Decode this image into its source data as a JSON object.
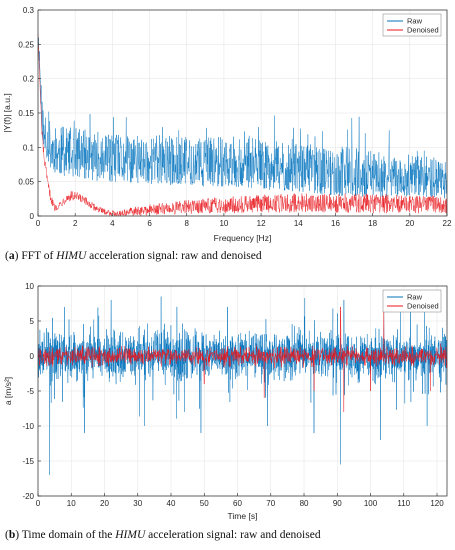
{
  "captions": {
    "a": {
      "letter": "a",
      "pre": "FFT of ",
      "em": "HIMU",
      "post": " acceleration signal: raw and denoised"
    },
    "b": {
      "letter": "b",
      "pre": "Time domain of the ",
      "em": "HIMU",
      "post": " acceleration signal: raw and denoised"
    }
  },
  "colors": {
    "raw": "#0072bd",
    "denoised": "#e8161c",
    "grid": "#e6e6e6",
    "axis": "#262626"
  },
  "chart_data": [
    {
      "id": "fft",
      "type": "line",
      "title": "",
      "xlabel": "Frequency [Hz]",
      "ylabel": "|Y(f)| [a.u.]",
      "xlim": [
        0,
        22
      ],
      "ylim": [
        0,
        0.3
      ],
      "xticks": [
        0,
        2,
        4,
        6,
        8,
        10,
        12,
        14,
        16,
        18,
        20,
        22
      ],
      "yticks": [
        0,
        0.05,
        0.1,
        0.15,
        0.2,
        0.25,
        0.3
      ],
      "ytick_labels": [
        "0",
        "0.05",
        "0.1",
        "0.15",
        "0.2",
        "0.25",
        "0.3"
      ],
      "grid": true,
      "legend_position": "top-right",
      "series": [
        {
          "name": "Raw",
          "color": "#0072bd",
          "x": [
            0,
            0.1,
            0.2,
            0.3,
            0.5,
            0.7,
            1,
            1.5,
            2,
            3,
            4,
            5,
            6,
            7,
            8,
            9,
            10,
            11,
            12,
            13,
            14,
            15,
            16,
            17,
            18,
            19,
            20,
            21,
            22
          ],
          "y": [
            0.27,
            0.22,
            0.15,
            0.12,
            0.11,
            0.1,
            0.095,
            0.09,
            0.09,
            0.085,
            0.08,
            0.08,
            0.08,
            0.078,
            0.078,
            0.076,
            0.076,
            0.075,
            0.072,
            0.07,
            0.068,
            0.065,
            0.063,
            0.06,
            0.058,
            0.056,
            0.055,
            0.054,
            0.053
          ],
          "spread": [
            0.02,
            0.03,
            0.04,
            0.05,
            0.05,
            0.06,
            0.06,
            0.06,
            0.06,
            0.06,
            0.06,
            0.06,
            0.06,
            0.06,
            0.06,
            0.06,
            0.06,
            0.06,
            0.06,
            0.06,
            0.06,
            0.06,
            0.06,
            0.06,
            0.06,
            0.05,
            0.05,
            0.05,
            0.05
          ]
        },
        {
          "name": "Denoised",
          "color": "#e8161c",
          "x": [
            0,
            0.1,
            0.2,
            0.3,
            0.5,
            0.7,
            0.9,
            1.2,
            1.5,
            1.8,
            2.1,
            2.5,
            3,
            3.5,
            4,
            4.5,
            5,
            6,
            7,
            8,
            9,
            10,
            11,
            12,
            13,
            14,
            15,
            16,
            17,
            18,
            19,
            20,
            21,
            22
          ],
          "y": [
            0.27,
            0.19,
            0.13,
            0.09,
            0.05,
            0.025,
            0.012,
            0.017,
            0.026,
            0.029,
            0.027,
            0.022,
            0.013,
            0.007,
            0.004,
            0.004,
            0.006,
            0.009,
            0.011,
            0.013,
            0.015,
            0.016,
            0.017,
            0.018,
            0.019,
            0.019,
            0.019,
            0.019,
            0.019,
            0.018,
            0.018,
            0.017,
            0.017,
            0.016
          ],
          "spread": [
            0.01,
            0.01,
            0.01,
            0.01,
            0.008,
            0.006,
            0.005,
            0.006,
            0.007,
            0.008,
            0.008,
            0.007,
            0.005,
            0.004,
            0.004,
            0.005,
            0.006,
            0.008,
            0.009,
            0.01,
            0.011,
            0.012,
            0.013,
            0.013,
            0.014,
            0.014,
            0.014,
            0.014,
            0.014,
            0.014,
            0.014,
            0.013,
            0.013,
            0.013
          ]
        }
      ]
    },
    {
      "id": "time",
      "type": "line",
      "title": "",
      "xlabel": "Time [s]",
      "ylabel": "a [m/s²]",
      "xlim": [
        0,
        123
      ],
      "ylim": [
        -20,
        10
      ],
      "xticks": [
        0,
        10,
        20,
        30,
        40,
        50,
        60,
        70,
        80,
        90,
        100,
        110,
        120
      ],
      "yticks": [
        -20,
        -15,
        -10,
        -5,
        0,
        5,
        10
      ],
      "ytick_labels": [
        "-20",
        "-15",
        "-10",
        "-5",
        "0",
        "5",
        "10"
      ],
      "grid": true,
      "legend_position": "top-right",
      "series": [
        {
          "name": "Raw",
          "color": "#0072bd",
          "x": [
            0,
            10,
            20,
            30,
            40,
            50,
            60,
            70,
            80,
            90,
            100,
            110,
            120,
            123
          ],
          "y": [
            0,
            0,
            0,
            0,
            0,
            0,
            0,
            0,
            0,
            0,
            0,
            0,
            0,
            0
          ],
          "spread": [
            3,
            3,
            3,
            3,
            3,
            3,
            3,
            3,
            3,
            3,
            3,
            3,
            3,
            3
          ],
          "spikes": [
            {
              "x": 3.5,
              "y": -17
            },
            {
              "x": 8,
              "y": 7
            },
            {
              "x": 14,
              "y": -11
            },
            {
              "x": 22,
              "y": 8
            },
            {
              "x": 32,
              "y": -10
            },
            {
              "x": 37,
              "y": 8.5
            },
            {
              "x": 44,
              "y": -8
            },
            {
              "x": 49,
              "y": -11
            },
            {
              "x": 57,
              "y": 7
            },
            {
              "x": 69,
              "y": -10
            },
            {
              "x": 83,
              "y": -11
            },
            {
              "x": 91,
              "y": -15.5
            },
            {
              "x": 92,
              "y": 8
            },
            {
              "x": 103,
              "y": -12
            },
            {
              "x": 104,
              "y": 7.5
            },
            {
              "x": 112,
              "y": 7
            },
            {
              "x": 117,
              "y": -10
            }
          ]
        },
        {
          "name": "Denoised",
          "color": "#e8161c",
          "x": [
            0,
            10,
            20,
            30,
            40,
            50,
            60,
            70,
            80,
            90,
            100,
            110,
            120,
            123
          ],
          "y": [
            0,
            0,
            0,
            0,
            0,
            0,
            0,
            0,
            0,
            0,
            0,
            0,
            0,
            0
          ],
          "spread": [
            1.2,
            1.2,
            1.2,
            1.2,
            1.2,
            1.2,
            1.2,
            1.2,
            1.2,
            1.2,
            1.2,
            1.2,
            1.2,
            1.2
          ],
          "spikes": [
            {
              "x": 50,
              "y": -4
            },
            {
              "x": 68,
              "y": -6
            },
            {
              "x": 83,
              "y": -5
            },
            {
              "x": 91,
              "y": 7
            },
            {
              "x": 92,
              "y": -8
            },
            {
              "x": 100,
              "y": -5
            },
            {
              "x": 104,
              "y": 7
            },
            {
              "x": 118,
              "y": -5
            }
          ]
        }
      ]
    }
  ]
}
